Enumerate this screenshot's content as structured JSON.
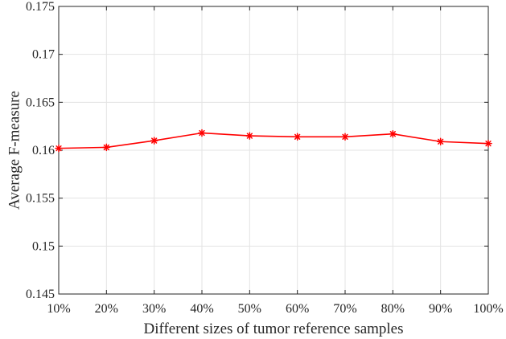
{
  "chart_data": {
    "type": "line",
    "title": "",
    "xlabel": "Different sizes of tumor reference samples",
    "ylabel": "Average F-measure",
    "categories": [
      "10%",
      "20%",
      "30%",
      "40%",
      "50%",
      "60%",
      "70%",
      "80%",
      "90%",
      "100%"
    ],
    "series": [
      {
        "name": "Average F-measure",
        "color": "#ff0000",
        "marker": "asterisk",
        "values": [
          0.1602,
          0.1603,
          0.161,
          0.1618,
          0.1615,
          0.1614,
          0.1614,
          0.1617,
          0.1609,
          0.1607
        ]
      }
    ],
    "ylim": [
      0.145,
      0.175
    ],
    "yticks": [
      0.145,
      0.15,
      0.155,
      0.16,
      0.165,
      0.17,
      0.175
    ],
    "ytick_labels": [
      "0.145",
      "0.15",
      "0.155",
      "0.16",
      "0.165",
      "0.17",
      "0.175"
    ],
    "grid": true,
    "legend": "none"
  }
}
